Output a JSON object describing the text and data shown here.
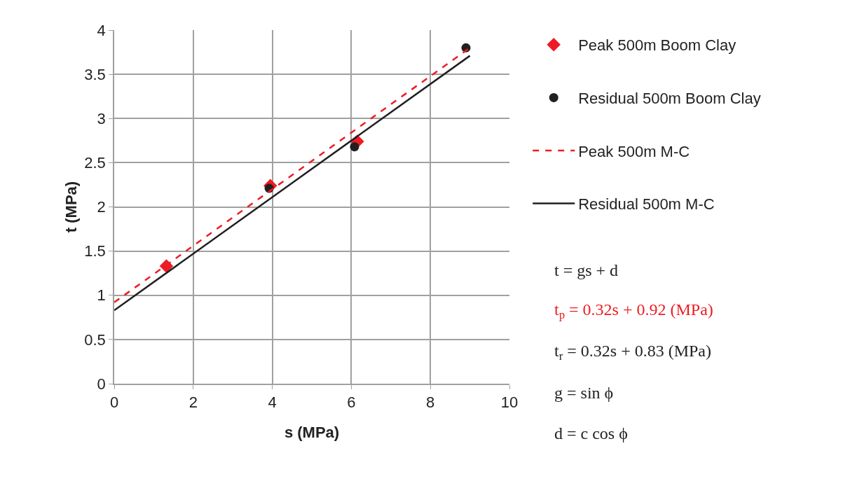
{
  "chart_data": {
    "type": "scatter",
    "xlabel": "s (MPa)",
    "ylabel": "t (MPa)",
    "xlim": [
      0,
      10
    ],
    "xticks": [
      0,
      2,
      4,
      6,
      8,
      10
    ],
    "ylim": [
      0,
      4
    ],
    "yticks": [
      0,
      0.5,
      1,
      1.5,
      2,
      2.5,
      3,
      3.5,
      4
    ],
    "grid": true,
    "legend": "right",
    "series": [
      {
        "name": "Peak 500m Boom Clay",
        "marker": "diamond",
        "color": "#ed1c24",
        "x": [
          1.32,
          3.95,
          6.15
        ],
        "values": [
          1.33,
          2.24,
          2.74
        ]
      },
      {
        "name": "Residual 500m Boom Clay",
        "marker": "circle",
        "color": "#231f20",
        "x": [
          3.92,
          6.08,
          8.9
        ],
        "values": [
          2.21,
          2.68,
          3.8
        ]
      },
      {
        "name": "Peak 500m M-C",
        "type": "line",
        "marker": "none",
        "line_style": "dashed",
        "color": "#ed1c24",
        "x": [
          0,
          9
        ],
        "values": [
          0.92,
          3.8
        ]
      },
      {
        "name": "Residual 500m M-C",
        "type": "line",
        "marker": "none",
        "line_style": "solid",
        "color": "#231f20",
        "x": [
          0,
          9
        ],
        "values": [
          0.83,
          3.71
        ]
      }
    ],
    "annotations": [
      "t = gs + d",
      "t$_{p}$ = 0.32s + 0.92 (MPa)",
      "t$_{r}$ = 0.32s + 0.83 (MPa)",
      "g = sin ϕ",
      "d = c cos ϕ"
    ]
  }
}
